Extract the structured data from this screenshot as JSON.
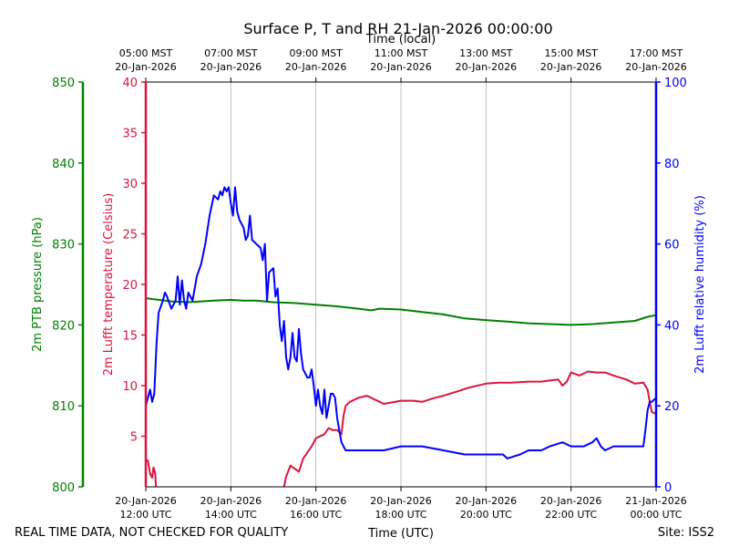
{
  "chart_data": {
    "type": "line",
    "title": "Surface P, T and RH 21-Jan-2026 00:00:00",
    "top_axis_label": "Time (local)",
    "xlabel": "Time (UTC)",
    "footer_left": "REAL TIME DATA, NOT CHECKED FOR QUALITY",
    "footer_right": "Site: ISS2",
    "x_range_hours": [
      0,
      12
    ],
    "x_ticks_utc": [
      {
        "h": 0,
        "l1": "20-Jan-2026",
        "l2": "12:00 UTC"
      },
      {
        "h": 2,
        "l1": "20-Jan-2026",
        "l2": "14:00 UTC"
      },
      {
        "h": 4,
        "l1": "20-Jan-2026",
        "l2": "16:00 UTC"
      },
      {
        "h": 6,
        "l1": "20-Jan-2026",
        "l2": "18:00 UTC"
      },
      {
        "h": 8,
        "l1": "20-Jan-2026",
        "l2": "20:00 UTC"
      },
      {
        "h": 10,
        "l1": "20-Jan-2026",
        "l2": "22:00 UTC"
      },
      {
        "h": 12,
        "l1": "21-Jan-2026",
        "l2": "00:00 UTC"
      }
    ],
    "x_ticks_local": [
      {
        "h": 0,
        "l1": "05:00 MST",
        "l2": "20-Jan-2026"
      },
      {
        "h": 2,
        "l1": "07:00 MST",
        "l2": "20-Jan-2026"
      },
      {
        "h": 4,
        "l1": "09:00 MST",
        "l2": "20-Jan-2026"
      },
      {
        "h": 6,
        "l1": "11:00 MST",
        "l2": "20-Jan-2026"
      },
      {
        "h": 8,
        "l1": "13:00 MST",
        "l2": "20-Jan-2026"
      },
      {
        "h": 10,
        "l1": "15:00 MST",
        "l2": "20-Jan-2026"
      },
      {
        "h": 12,
        "l1": "17:00 MST",
        "l2": "20-Jan-2026"
      }
    ],
    "axes": {
      "pressure": {
        "label": "2m PTB pressure (hPa)",
        "color": "#008000",
        "range": [
          800,
          850
        ],
        "ticks": [
          800,
          810,
          820,
          830,
          840,
          850
        ]
      },
      "temperature": {
        "label": "2m Lufft temperature (Celsius)",
        "color": "#dc143c",
        "range": [
          0,
          40
        ],
        "ticks": [
          5,
          10,
          15,
          20,
          25,
          30,
          35,
          40
        ]
      },
      "humidity": {
        "label": "2m Lufft relative humidity (%)",
        "color": "#0000ff",
        "range": [
          0,
          100
        ],
        "ticks": [
          0,
          20,
          40,
          60,
          80,
          100
        ]
      }
    },
    "series": [
      {
        "name": "2m PTB pressure",
        "axis": "pressure",
        "color": "#008000",
        "points": [
          [
            0,
            823.3
          ],
          [
            0.3,
            823.1
          ],
          [
            0.6,
            822.9
          ],
          [
            1,
            822.8
          ],
          [
            1.3,
            822.9
          ],
          [
            1.6,
            823.0
          ],
          [
            2,
            823.1
          ],
          [
            2.3,
            823.0
          ],
          [
            2.6,
            823.0
          ],
          [
            3,
            822.8
          ],
          [
            3.5,
            822.7
          ],
          [
            4,
            822.5
          ],
          [
            4.5,
            822.3
          ],
          [
            5,
            822.0
          ],
          [
            5.3,
            821.8
          ],
          [
            5.5,
            822.0
          ],
          [
            6,
            821.9
          ],
          [
            6.5,
            821.6
          ],
          [
            7,
            821.3
          ],
          [
            7.5,
            820.8
          ],
          [
            8,
            820.6
          ],
          [
            8.5,
            820.4
          ],
          [
            9,
            820.2
          ],
          [
            9.5,
            820.1
          ],
          [
            10,
            820.0
          ],
          [
            10.5,
            820.1
          ],
          [
            11,
            820.3
          ],
          [
            11.5,
            820.5
          ],
          [
            11.8,
            821.0
          ],
          [
            12,
            821.2
          ]
        ]
      },
      {
        "name": "2m Lufft temperature",
        "axis": "temperature",
        "color": "#dc143c",
        "points": [
          [
            0,
            2.6
          ],
          [
            0.05,
            2.6
          ],
          [
            0.1,
            1.3
          ],
          [
            0.15,
            0.9
          ],
          [
            0.18,
            1.9
          ],
          [
            0.2,
            1.7
          ],
          [
            0.22,
            1.3
          ],
          [
            0.24,
            0
          ],
          [
            0.25,
            null
          ],
          [
            3.2,
            null
          ],
          [
            3.25,
            0
          ],
          [
            3.3,
            1.0
          ],
          [
            3.4,
            2.1
          ],
          [
            3.5,
            1.8
          ],
          [
            3.6,
            1.5
          ],
          [
            3.7,
            2.8
          ],
          [
            3.8,
            3.4
          ],
          [
            3.9,
            4.0
          ],
          [
            4.0,
            4.8
          ],
          [
            4.2,
            5.2
          ],
          [
            4.3,
            5.8
          ],
          [
            4.4,
            5.6
          ],
          [
            4.5,
            5.6
          ],
          [
            4.6,
            5.2
          ],
          [
            4.65,
            7.0
          ],
          [
            4.7,
            8.0
          ],
          [
            4.8,
            8.4
          ],
          [
            5.0,
            8.8
          ],
          [
            5.2,
            9.0
          ],
          [
            5.3,
            8.8
          ],
          [
            5.5,
            8.4
          ],
          [
            5.6,
            8.2
          ],
          [
            6.0,
            8.5
          ],
          [
            6.3,
            8.5
          ],
          [
            6.5,
            8.4
          ],
          [
            6.8,
            8.8
          ],
          [
            7.0,
            9.0
          ],
          [
            7.3,
            9.4
          ],
          [
            7.6,
            9.8
          ],
          [
            8.0,
            10.2
          ],
          [
            8.3,
            10.3
          ],
          [
            8.6,
            10.3
          ],
          [
            9.0,
            10.4
          ],
          [
            9.3,
            10.4
          ],
          [
            9.5,
            10.5
          ],
          [
            9.7,
            10.6
          ],
          [
            9.8,
            10.0
          ],
          [
            9.9,
            10.4
          ],
          [
            10.0,
            11.3
          ],
          [
            10.2,
            11.0
          ],
          [
            10.4,
            11.4
          ],
          [
            10.6,
            11.3
          ],
          [
            10.8,
            11.3
          ],
          [
            11.0,
            11.0
          ],
          [
            11.3,
            10.6
          ],
          [
            11.5,
            10.2
          ],
          [
            11.7,
            10.3
          ],
          [
            11.8,
            9.6
          ],
          [
            11.85,
            8.4
          ],
          [
            11.9,
            7.4
          ],
          [
            12.0,
            7.2
          ]
        ]
      },
      {
        "name": "2m Lufft relative humidity",
        "axis": "humidity",
        "color": "#0000ff",
        "points": [
          [
            0,
            20
          ],
          [
            0.05,
            22
          ],
          [
            0.1,
            24
          ],
          [
            0.15,
            21
          ],
          [
            0.2,
            23
          ],
          [
            0.25,
            35
          ],
          [
            0.3,
            43
          ],
          [
            0.4,
            46
          ],
          [
            0.45,
            48
          ],
          [
            0.5,
            47
          ],
          [
            0.6,
            44
          ],
          [
            0.7,
            46
          ],
          [
            0.75,
            52
          ],
          [
            0.8,
            45
          ],
          [
            0.85,
            51
          ],
          [
            0.9,
            46
          ],
          [
            0.95,
            44
          ],
          [
            1.0,
            48
          ],
          [
            1.1,
            46
          ],
          [
            1.2,
            52
          ],
          [
            1.3,
            55
          ],
          [
            1.4,
            60
          ],
          [
            1.5,
            67
          ],
          [
            1.6,
            72
          ],
          [
            1.7,
            71
          ],
          [
            1.75,
            73
          ],
          [
            1.8,
            72
          ],
          [
            1.85,
            74
          ],
          [
            1.9,
            73
          ],
          [
            1.95,
            74
          ],
          [
            2.0,
            70
          ],
          [
            2.05,
            67
          ],
          [
            2.1,
            74
          ],
          [
            2.15,
            68
          ],
          [
            2.2,
            66
          ],
          [
            2.3,
            64
          ],
          [
            2.35,
            61
          ],
          [
            2.4,
            62
          ],
          [
            2.45,
            67
          ],
          [
            2.5,
            61
          ],
          [
            2.6,
            60
          ],
          [
            2.7,
            59
          ],
          [
            2.75,
            56
          ],
          [
            2.8,
            60
          ],
          [
            2.85,
            46
          ],
          [
            2.9,
            53
          ],
          [
            3.0,
            54
          ],
          [
            3.05,
            47
          ],
          [
            3.1,
            49
          ],
          [
            3.15,
            40
          ],
          [
            3.2,
            36
          ],
          [
            3.25,
            41
          ],
          [
            3.3,
            32
          ],
          [
            3.35,
            29
          ],
          [
            3.4,
            32
          ],
          [
            3.45,
            38
          ],
          [
            3.5,
            32
          ],
          [
            3.55,
            31
          ],
          [
            3.6,
            39
          ],
          [
            3.65,
            33
          ],
          [
            3.7,
            29
          ],
          [
            3.75,
            28
          ],
          [
            3.8,
            27
          ],
          [
            3.85,
            27
          ],
          [
            3.9,
            29
          ],
          [
            3.95,
            25
          ],
          [
            4.0,
            20
          ],
          [
            4.05,
            24
          ],
          [
            4.1,
            20
          ],
          [
            4.15,
            18
          ],
          [
            4.2,
            24
          ],
          [
            4.25,
            17
          ],
          [
            4.3,
            20
          ],
          [
            4.35,
            23
          ],
          [
            4.4,
            23
          ],
          [
            4.45,
            22
          ],
          [
            4.5,
            17
          ],
          [
            4.55,
            14
          ],
          [
            4.6,
            11
          ],
          [
            4.7,
            9
          ],
          [
            5.0,
            9
          ],
          [
            5.5,
            9
          ],
          [
            5.6,
            9
          ],
          [
            6.0,
            10
          ],
          [
            6.5,
            10
          ],
          [
            7.0,
            9
          ],
          [
            7.5,
            8
          ],
          [
            8.0,
            8
          ],
          [
            8.4,
            8
          ],
          [
            8.5,
            7
          ],
          [
            8.8,
            8
          ],
          [
            9.0,
            9
          ],
          [
            9.3,
            9
          ],
          [
            9.5,
            10
          ],
          [
            9.8,
            11
          ],
          [
            10.0,
            10
          ],
          [
            10.3,
            10
          ],
          [
            10.5,
            11
          ],
          [
            10.6,
            12
          ],
          [
            10.7,
            10
          ],
          [
            10.8,
            9
          ],
          [
            11.0,
            10
          ],
          [
            11.2,
            10
          ],
          [
            11.4,
            10
          ],
          [
            11.6,
            10
          ],
          [
            11.7,
            10
          ],
          [
            11.75,
            14
          ],
          [
            11.8,
            19
          ],
          [
            11.85,
            21
          ],
          [
            11.9,
            21
          ],
          [
            12.0,
            22
          ]
        ]
      }
    ]
  }
}
